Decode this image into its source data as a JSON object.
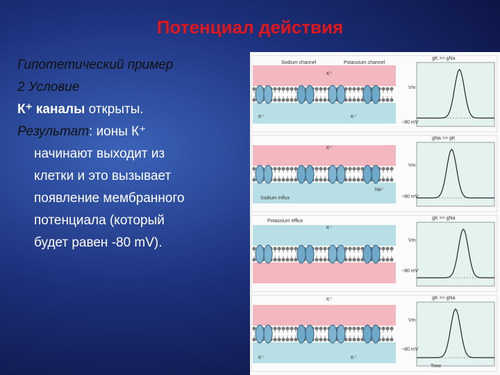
{
  "header": {
    "title": "Потенциал действия"
  },
  "bullets": [
    {
      "text": "Гипотетический пример"
    },
    {
      "text": "2 Условие"
    },
    {
      "bold": "К⁺ каналы",
      "text": " открыты."
    },
    {
      "lead": "Результат",
      "lines": [
        ": ионы К⁺",
        "начинают выходит из",
        "клетки и это вызывает",
        "появление мембранного",
        "потенциала (который",
        "будет равен -80 mV)."
      ]
    }
  ],
  "figure": {
    "panels": [
      {
        "labels": [
          "Sodium channel",
          "Potassium channel",
          "K⁺",
          "K⁺",
          "K⁺",
          "gK >> gNa",
          "Vm",
          "−80 mV"
        ]
      },
      {
        "labels": [
          "K⁺",
          "Na⁺",
          "Sodium influx",
          "gNa >> gK",
          "Vm",
          "−80 mV"
        ]
      },
      {
        "labels": [
          "Potassium efflux",
          "K⁺",
          "gK >> gNa",
          "Vm",
          "−80 mV"
        ]
      },
      {
        "labels": [
          "K⁺",
          "K⁺",
          "K⁺",
          "gK >> gNa",
          "Vm",
          "−80 mV",
          "Time"
        ]
      }
    ]
  }
}
